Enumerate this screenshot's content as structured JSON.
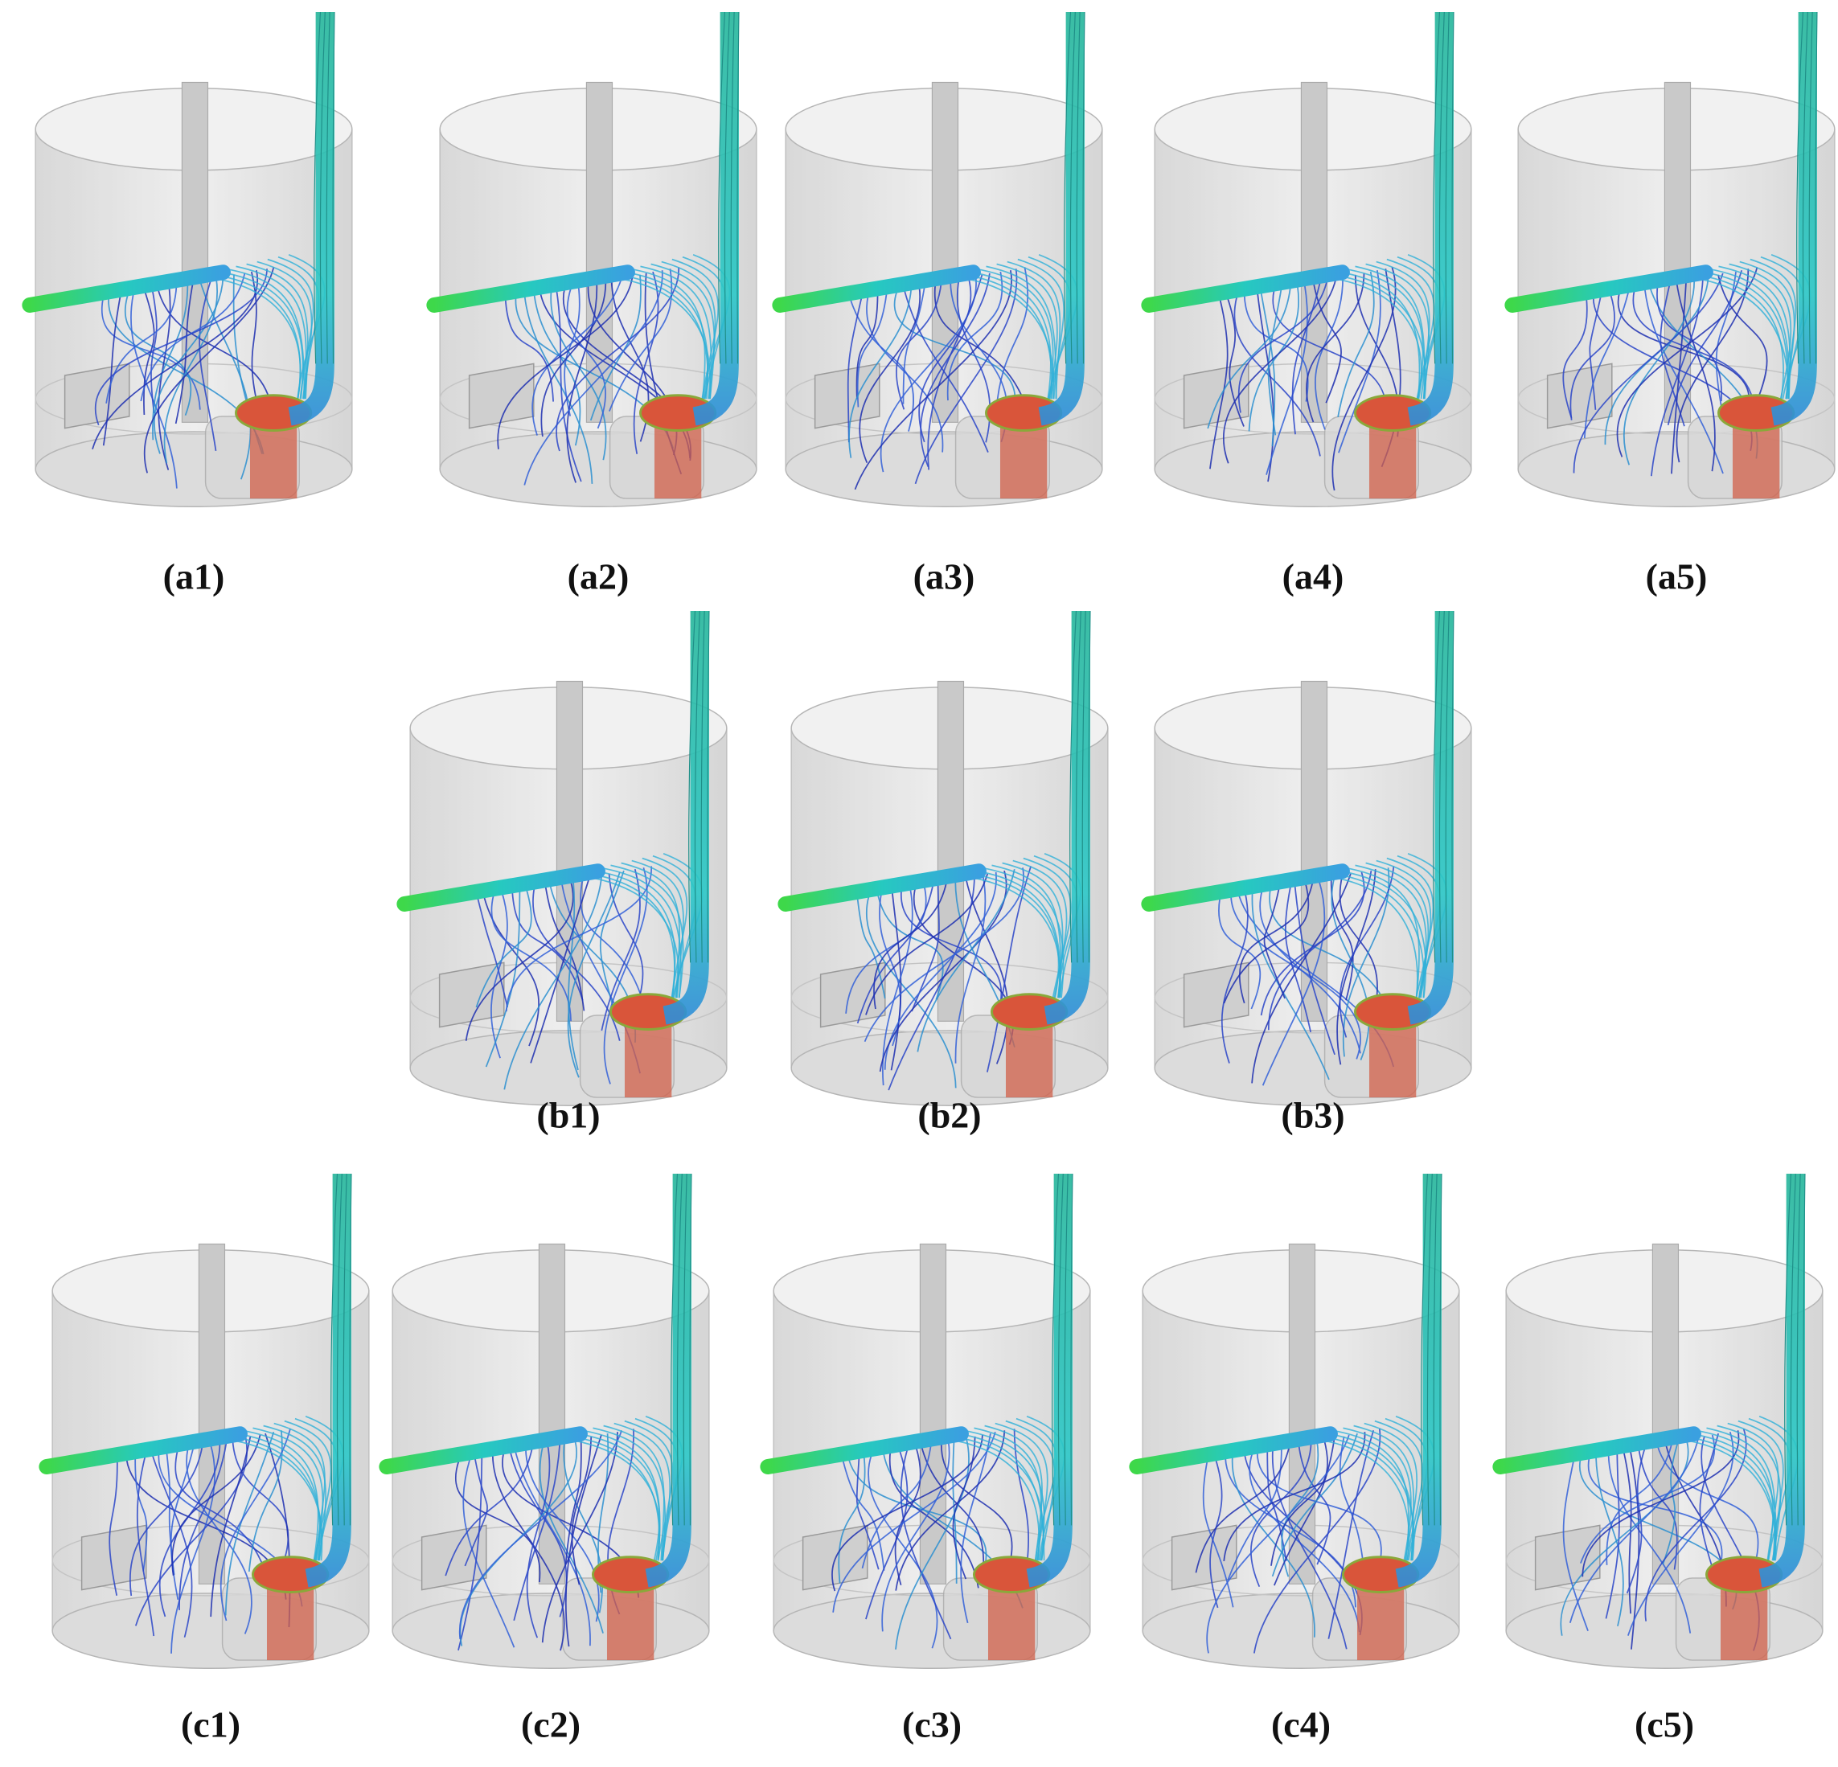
{
  "rows": [
    [
      "(a1)",
      "(a2)",
      "(a3)",
      "(a4)",
      "(a5)"
    ],
    [
      "(b1)",
      "(b2)",
      "(b3)"
    ],
    [
      "(c1)",
      "(c2)",
      "(c3)",
      "(c4)",
      "(c5)"
    ]
  ]
}
